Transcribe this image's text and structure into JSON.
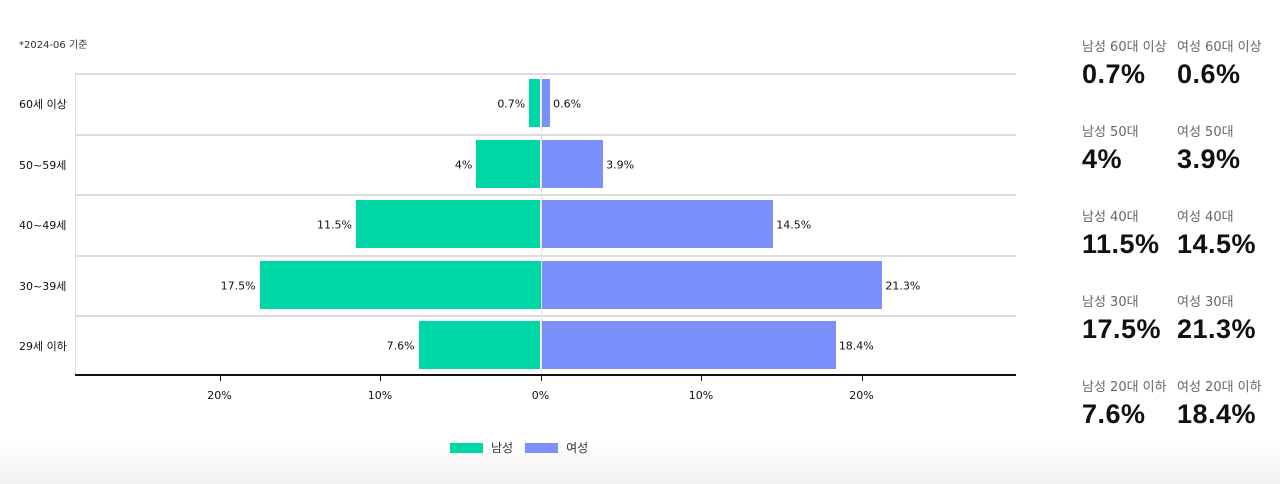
{
  "note": "*2024-06 기준",
  "chart_data": {
    "type": "bar",
    "orientation": "horizontal-diverging",
    "title": "",
    "categories": [
      "60세 이상",
      "50~59세",
      "40~49세",
      "30~39세",
      "29세 이하"
    ],
    "series": [
      {
        "name": "남성",
        "color": "#00d7a6",
        "values": [
          0.7,
          4,
          11.5,
          17.5,
          7.6
        ],
        "labels": [
          "0.7%",
          "4%",
          "11.5%",
          "17.5%",
          "7.6%"
        ]
      },
      {
        "name": "여성",
        "color": "#7b90fa",
        "values": [
          0.6,
          3.9,
          14.5,
          21.3,
          18.4
        ],
        "labels": [
          "0.6%",
          "3.9%",
          "14.5%",
          "21.3%",
          "18.4%"
        ]
      }
    ],
    "xticks": [
      "20%",
      "10%",
      "0%",
      "10%",
      "20%"
    ],
    "xlim": [
      -29,
      29.6
    ],
    "xlabel": "",
    "ylabel": "",
    "grid": "horizontal bands",
    "legend_position": "bottom-center"
  },
  "legend": [
    {
      "label": "남성",
      "color": "#00d7a6"
    },
    {
      "label": "여성",
      "color": "#7b90fa"
    }
  ],
  "stats": [
    {
      "label": "남성 60대 이상",
      "value": "0.7%"
    },
    {
      "label": "여성 60대 이상",
      "value": "0.6%"
    },
    {
      "label": "남성 50대",
      "value": "4%"
    },
    {
      "label": "여성 50대",
      "value": "3.9%"
    },
    {
      "label": "남성 40대",
      "value": "11.5%"
    },
    {
      "label": "여성 40대",
      "value": "14.5%"
    },
    {
      "label": "남성 30대",
      "value": "17.5%"
    },
    {
      "label": "여성 30대",
      "value": "21.3%"
    },
    {
      "label": "남성 20대 이하",
      "value": "7.6%"
    },
    {
      "label": "여성 20대 이하",
      "value": "18.4%"
    }
  ]
}
